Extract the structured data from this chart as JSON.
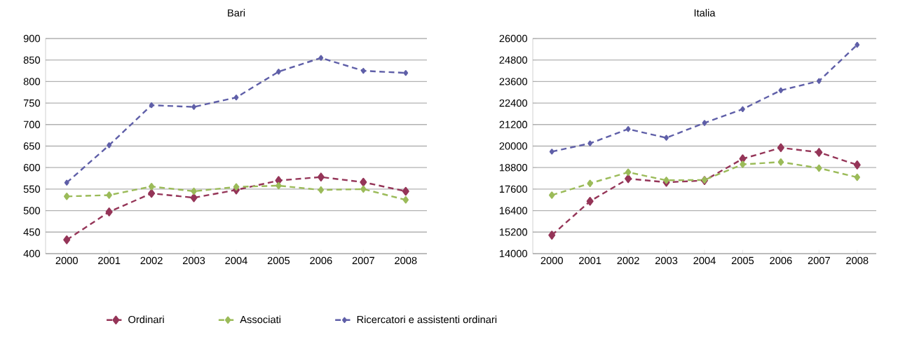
{
  "chart_data": [
    {
      "type": "line",
      "title": "Bari",
      "categories": [
        "2000",
        "2001",
        "2002",
        "2003",
        "2004",
        "2005",
        "2006",
        "2007",
        "2008"
      ],
      "series": [
        {
          "name": "Ordinari",
          "color": "#953558",
          "values": [
            432,
            497,
            540,
            530,
            548,
            570,
            578,
            566,
            545
          ]
        },
        {
          "name": "Associati",
          "color": "#9bbb59",
          "values": [
            533,
            536,
            556,
            545,
            555,
            558,
            548,
            550,
            525
          ]
        },
        {
          "name": "Ricercatori e assistenti ordinari",
          "color": "#5f5fa8",
          "values": [
            565,
            652,
            745,
            741,
            763,
            823,
            855,
            825,
            820
          ]
        }
      ],
      "ylim": [
        400,
        900
      ],
      "yticks": [
        400,
        450,
        500,
        550,
        600,
        650,
        700,
        750,
        800,
        850,
        900
      ],
      "grid": "y",
      "legend": "bottom",
      "marker": "diamond",
      "line_style": "dashed"
    },
    {
      "type": "line",
      "title": "Italia",
      "categories": [
        "2000",
        "2001",
        "2002",
        "2003",
        "2004",
        "2005",
        "2006",
        "2007",
        "2008"
      ],
      "series": [
        {
          "color": "#953558",
          "values": [
            15030,
            16920,
            18180,
            17980,
            18080,
            19290,
            19910,
            19650,
            18950
          ]
        },
        {
          "color": "#9bbb59",
          "values": [
            17260,
            17920,
            18540,
            18090,
            18110,
            18980,
            19110,
            18770,
            18260
          ]
        },
        {
          "color": "#5f5fa8",
          "values": [
            19690,
            20150,
            20950,
            20460,
            21290,
            22060,
            23110,
            23630,
            25650
          ]
        }
      ],
      "ylim": [
        14000,
        26000
      ],
      "yticks": [
        14000,
        15200,
        16400,
        17600,
        18800,
        20000,
        21200,
        22400,
        23600,
        24800,
        26000
      ],
      "grid": "y",
      "marker": "diamond",
      "line_style": "dashed"
    }
  ]
}
